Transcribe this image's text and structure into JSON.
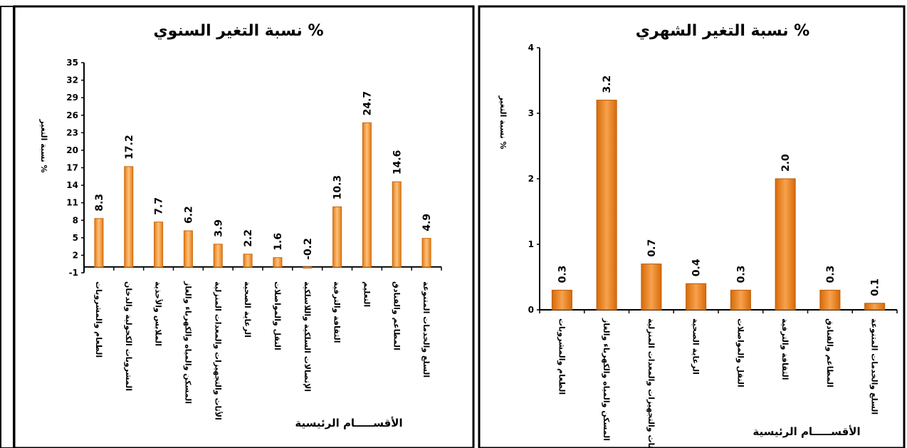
{
  "chart_data": [
    {
      "type": "bar",
      "title": "نسبة التغير السنوي %",
      "ylabel": "نسبة التغير %",
      "xlabel": "الأقســـــام الرئيسية",
      "ylim": [
        -1,
        35
      ],
      "yticks": [
        -1,
        2,
        5,
        8,
        11,
        14,
        17,
        20,
        23,
        26,
        29,
        32,
        35
      ],
      "categories": [
        "الطعام والمشروبات",
        "المشروبات الكحولية والدخان",
        "الملابس والأحذية",
        "المسكن والمياه والكهرباء والغاز",
        "الأثاث والتجهيزات والمعدات المنزلية",
        "الرعاية الصحية",
        "النقل والمواصلات",
        "الإتصالات السلكية واللاسلكية",
        "الثقافة والترفية",
        "التعليم",
        "المطاعم والفنادق",
        "السلع والخدمات المتنوعة"
      ],
      "values": [
        8.3,
        17.2,
        7.7,
        6.2,
        3.9,
        2.2,
        1.6,
        -0.2,
        10.3,
        24.7,
        14.6,
        4.9
      ],
      "value_labels": [
        "8.3",
        "17.2",
        "7.7",
        "6.2",
        "3.9",
        "2.2",
        "1.6",
        "-0.2",
        "10.3",
        "24.7",
        "14.6",
        "4.9"
      ],
      "grid": false,
      "legend": "none",
      "bar_color": "#f4a24a"
    },
    {
      "type": "bar",
      "title": "نسبة التغير الشهري %",
      "ylabel": "نسبة التغير %",
      "xlabel": "الأقســـــام الرئيسية",
      "ylim": [
        0,
        4
      ],
      "yticks": [
        0,
        1,
        2,
        3,
        4
      ],
      "categories": [
        "الطعام والمشروبات",
        "المسكن والمياه والكهرباء والغاز",
        "الأثاث والتجهيزات والمعدات المنزلية",
        "الرعاية الصحية",
        "النقل والمواصلات",
        "الثقافة والترفية",
        "المطاعم والفنادق",
        "السلع والخدمات المتنوعة"
      ],
      "values": [
        0.3,
        3.2,
        0.7,
        0.4,
        0.3,
        2.0,
        0.3,
        0.1
      ],
      "value_labels": [
        "0.3",
        "3.2",
        "0.7",
        "0.4",
        "0.3",
        "2.0",
        "0.3",
        "0.1"
      ],
      "grid": false,
      "legend": "none",
      "bar_color": "#f07f14"
    }
  ]
}
